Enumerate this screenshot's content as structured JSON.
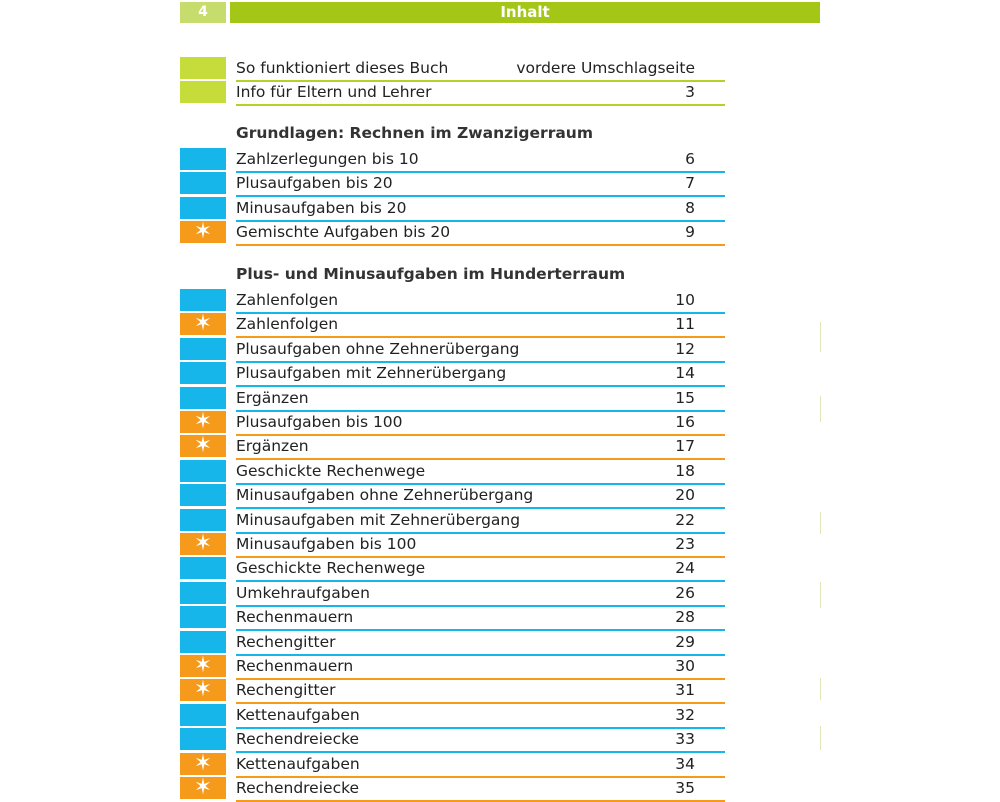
{
  "header": {
    "page_number": "4",
    "title": "Inhalt"
  },
  "intro_rows": [
    {
      "title": "So funktioniert dieses Buch",
      "page": "vordere Umschlagseite"
    },
    {
      "title": "Info für Eltern und Lehrer",
      "page": "3"
    }
  ],
  "sections": [
    {
      "heading": "Grundlagen: Rechnen im Zwanzigerraum",
      "rows": [
        {
          "title": "Zahlzerlegungen bis 10",
          "page": "6",
          "type": "basic"
        },
        {
          "title": "Plusaufgaben bis 20",
          "page": "7",
          "type": "basic"
        },
        {
          "title": "Minusaufgaben bis 20",
          "page": "8",
          "type": "basic"
        },
        {
          "title": "Gemischte Aufgaben bis 20",
          "page": "9",
          "type": "star",
          "icon": "star-icon"
        }
      ]
    },
    {
      "heading": "Plus- und Minusaufgaben im Hunderterraum",
      "rows": [
        {
          "title": "Zahlenfolgen",
          "page": "10",
          "type": "basic"
        },
        {
          "title": "Zahlenfolgen",
          "page": "11",
          "type": "star",
          "icon": "star-icon"
        },
        {
          "title": "Plusaufgaben ohne Zehnerübergang",
          "page": "12",
          "type": "basic"
        },
        {
          "title": "Plusaufgaben mit Zehnerübergang",
          "page": "14",
          "type": "basic"
        },
        {
          "title": "Ergänzen",
          "page": "15",
          "type": "basic"
        },
        {
          "title": "Plusaufgaben bis 100",
          "page": "16",
          "type": "star",
          "icon": "star-icon"
        },
        {
          "title": "Ergänzen",
          "page": "17",
          "type": "star",
          "icon": "star-icon"
        },
        {
          "title": "Geschickte Rechenwege",
          "page": "18",
          "type": "basic"
        },
        {
          "title": "Minusaufgaben ohne Zehnerübergang",
          "page": "20",
          "type": "basic"
        },
        {
          "title": "Minusaufgaben mit Zehnerübergang",
          "page": "22",
          "type": "basic"
        },
        {
          "title": "Minusaufgaben bis 100",
          "page": "23",
          "type": "star",
          "icon": "star-icon"
        },
        {
          "title": "Geschickte Rechenwege",
          "page": "24",
          "type": "basic"
        },
        {
          "title": "Umkehraufgaben",
          "page": "26",
          "type": "basic"
        },
        {
          "title": "Rechenmauern",
          "page": "28",
          "type": "basic"
        },
        {
          "title": "Rechengitter",
          "page": "29",
          "type": "basic"
        },
        {
          "title": "Rechenmauern",
          "page": "30",
          "type": "star",
          "icon": "star-icon"
        },
        {
          "title": "Rechengitter",
          "page": "31",
          "type": "star",
          "icon": "star-icon"
        },
        {
          "title": "Kettenaufgaben",
          "page": "32",
          "type": "basic"
        },
        {
          "title": "Rechendreiecke",
          "page": "33",
          "type": "basic"
        },
        {
          "title": "Kettenaufgaben",
          "page": "34",
          "type": "star",
          "icon": "star-icon"
        },
        {
          "title": "Rechendreiecke",
          "page": "35",
          "type": "star",
          "icon": "star-icon"
        }
      ]
    }
  ],
  "colors": {
    "intro_green": "#c6dc3a",
    "header_green": "#a4c617",
    "basic_blue": "#16b6ea",
    "star_orange": "#f59a1a"
  }
}
